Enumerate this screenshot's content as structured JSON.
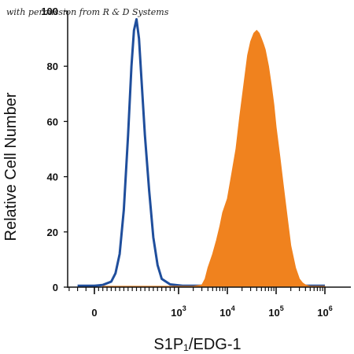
{
  "watermark": "with permission from R & D Systems",
  "chart_data": {
    "type": "area",
    "title": "",
    "xlabel": "S1P₁/EDG-1",
    "ylabel": "Relative Cell Number",
    "xscale": "biexponential",
    "xticks": [
      {
        "value": 0,
        "base": "0",
        "exp": ""
      },
      {
        "value": 1000,
        "base": "10",
        "exp": "3"
      },
      {
        "value": 10000,
        "base": "10",
        "exp": "4"
      },
      {
        "value": 100000,
        "base": "10",
        "exp": "5"
      },
      {
        "value": 1000000,
        "base": "10",
        "exp": "6"
      }
    ],
    "yticks": [
      0,
      20,
      40,
      60,
      80,
      100
    ],
    "ylim": [
      0,
      100
    ],
    "grid": false,
    "legend": "none",
    "series": [
      {
        "style": "outline",
        "color": "#1f4e9c",
        "points": [
          [
            -200,
            0.5
          ],
          [
            0,
            0.5
          ],
          [
            100,
            0.8
          ],
          [
            200,
            2
          ],
          [
            250,
            5
          ],
          [
            300,
            12
          ],
          [
            350,
            28
          ],
          [
            400,
            55
          ],
          [
            440,
            80
          ],
          [
            470,
            93
          ],
          [
            500,
            97
          ],
          [
            530,
            90
          ],
          [
            560,
            75
          ],
          [
            600,
            55
          ],
          [
            650,
            35
          ],
          [
            700,
            18
          ],
          [
            750,
            8
          ],
          [
            800,
            3
          ],
          [
            900,
            1
          ],
          [
            1200,
            0.5
          ],
          [
            1000000,
            0.5
          ]
        ]
      },
      {
        "style": "filled",
        "color": "#f0821e",
        "points": [
          [
            100,
            0.3
          ],
          [
            2000,
            0.3
          ],
          [
            3000,
            0.8
          ],
          [
            3500,
            3
          ],
          [
            4000,
            7
          ],
          [
            5000,
            12
          ],
          [
            6000,
            17
          ],
          [
            7000,
            22
          ],
          [
            8000,
            27
          ],
          [
            10000,
            32
          ],
          [
            12000,
            40
          ],
          [
            15000,
            50
          ],
          [
            18000,
            62
          ],
          [
            22000,
            74
          ],
          [
            26000,
            84
          ],
          [
            30000,
            89
          ],
          [
            35000,
            92
          ],
          [
            40000,
            93
          ],
          [
            45000,
            92
          ],
          [
            50000,
            90
          ],
          [
            55000,
            88
          ],
          [
            60000,
            86
          ],
          [
            70000,
            80
          ],
          [
            80000,
            73
          ],
          [
            90000,
            66
          ],
          [
            100000,
            58
          ],
          [
            120000,
            47
          ],
          [
            140000,
            37
          ],
          [
            170000,
            25
          ],
          [
            200000,
            15
          ],
          [
            250000,
            7
          ],
          [
            300000,
            3
          ],
          [
            350000,
            1.5
          ],
          [
            400000,
            0.8
          ],
          [
            500000,
            0.3
          ],
          [
            1000000,
            0.3
          ]
        ]
      }
    ]
  }
}
